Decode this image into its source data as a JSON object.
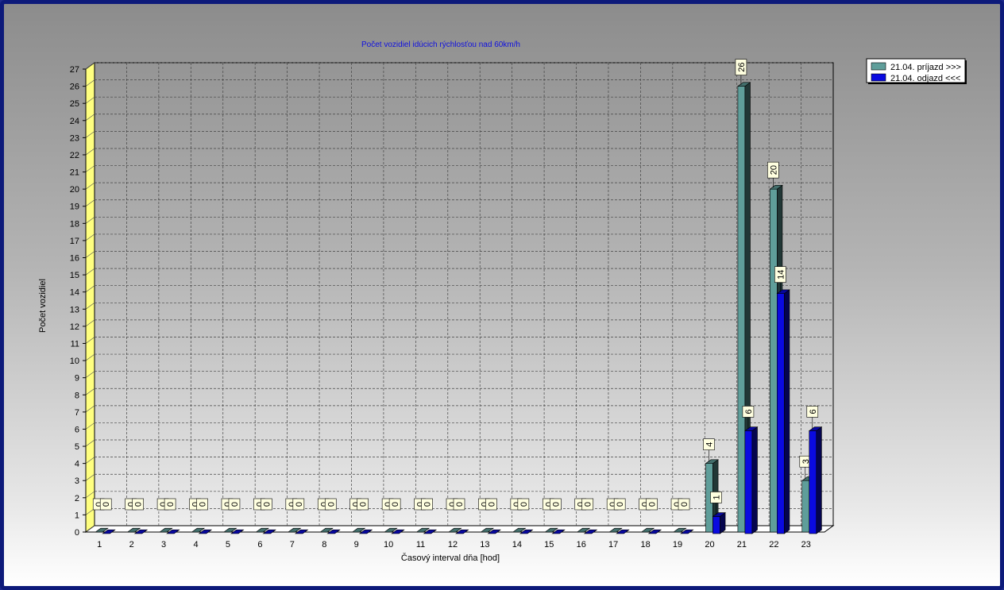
{
  "chart_data": {
    "type": "bar",
    "title": "Počet vozidiel idúcich rýchlosťou nad 60km/h",
    "xlabel": "Časový interval dňa [hod]",
    "ylabel": "Počet vozidiel",
    "categories": [
      "1",
      "2",
      "3",
      "4",
      "5",
      "6",
      "7",
      "8",
      "9",
      "10",
      "11",
      "12",
      "13",
      "14",
      "15",
      "16",
      "17",
      "18",
      "19",
      "20",
      "21",
      "22",
      "23"
    ],
    "series": [
      {
        "name": "21.04.  príjazd >>>",
        "color": "#5f9e9a",
        "values": [
          0,
          0,
          0,
          0,
          0,
          0,
          0,
          0,
          0,
          0,
          0,
          0,
          0,
          0,
          0,
          0,
          0,
          0,
          0,
          4,
          26,
          20,
          3
        ]
      },
      {
        "name": "21.04.  odjazd <<<",
        "color": "#0a0ae0",
        "values": [
          0,
          0,
          0,
          0,
          0,
          0,
          0,
          0,
          0,
          0,
          0,
          0,
          0,
          0,
          0,
          0,
          0,
          0,
          0,
          1,
          6,
          14,
          6
        ]
      }
    ],
    "ylim": [
      0,
      27
    ],
    "yticks": [
      "0",
      "1",
      "2",
      "3",
      "4",
      "5",
      "6",
      "7",
      "8",
      "9",
      "10",
      "11",
      "12",
      "13",
      "14",
      "15",
      "16",
      "17",
      "18",
      "19",
      "20",
      "21",
      "22",
      "23",
      "24",
      "25",
      "26",
      "27"
    ],
    "grid": true,
    "legend": "top-right"
  }
}
